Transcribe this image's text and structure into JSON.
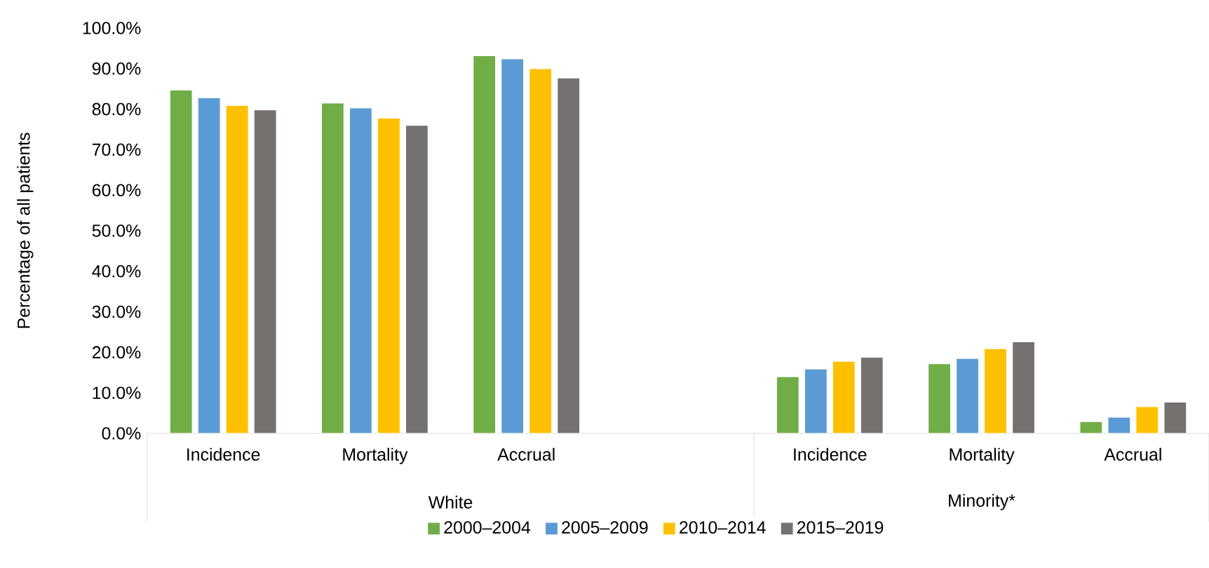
{
  "chart_data": {
    "type": "bar",
    "ylabel": "Percentage of all patients",
    "categories": [
      "Incidence",
      "Mortality",
      "Accrual",
      null,
      "Incidence",
      "Mortality",
      "Accrual"
    ],
    "annotations": [
      "White",
      "Minority*"
    ],
    "series": [
      {
        "name": "2000–2004",
        "color": "#70ad47",
        "values": [
          84.7,
          81.5,
          93.2,
          null,
          14.0,
          17.2,
          2.9
        ]
      },
      {
        "name": "2005–2009",
        "color": "#5b9bd5",
        "values": [
          82.8,
          80.3,
          92.4,
          null,
          15.9,
          18.5,
          4.0
        ]
      },
      {
        "name": "2010–2014",
        "color": "#ffc000",
        "values": [
          80.9,
          77.8,
          90.0,
          null,
          17.8,
          20.9,
          6.6
        ]
      },
      {
        "name": "2015–2019",
        "color": "#767171",
        "values": [
          79.8,
          76.0,
          87.7,
          null,
          18.8,
          22.6,
          7.7
        ]
      }
    ],
    "ylim": [
      0,
      100
    ],
    "yticks": [
      {
        "value": 0,
        "label": "0.0%"
      },
      {
        "value": 10,
        "label": "10.0%"
      },
      {
        "value": 20,
        "label": "20.0%"
      },
      {
        "value": 30,
        "label": "30.0%"
      },
      {
        "value": 40,
        "label": "40.0%"
      },
      {
        "value": 50,
        "label": "50.0%"
      },
      {
        "value": 60,
        "label": "60.0%"
      },
      {
        "value": 70,
        "label": "70.0%"
      },
      {
        "value": 80,
        "label": "80.0%"
      },
      {
        "value": 90,
        "label": "90.0%"
      },
      {
        "value": 100,
        "label": "100.0%"
      }
    ],
    "grid": false,
    "legend": "bottom"
  }
}
